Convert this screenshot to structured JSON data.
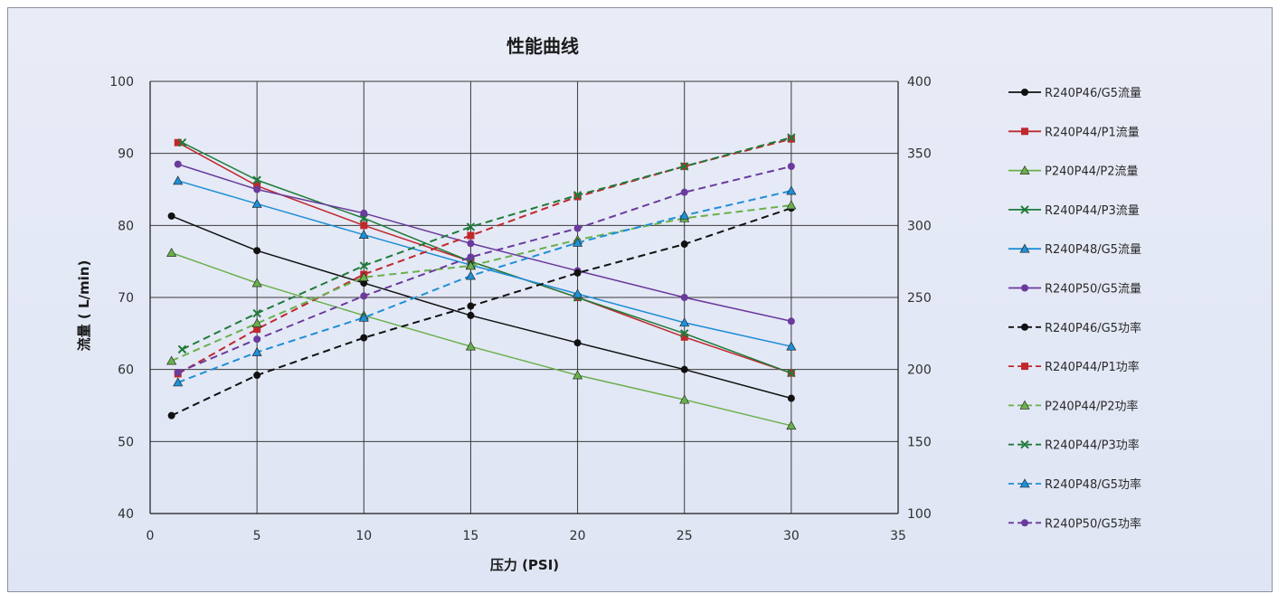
{
  "chart_data": {
    "type": "line",
    "title": "性能曲线",
    "xlabel": "压力 (PSI)",
    "ylabel": "流量 ( L/min)",
    "xlim": [
      0,
      35
    ],
    "ylim": [
      40,
      100
    ],
    "y2lim": [
      100,
      400
    ],
    "x_ticks": [
      0,
      5,
      10,
      15,
      20,
      25,
      30,
      35
    ],
    "y_ticks": [
      40,
      50,
      60,
      70,
      80,
      90,
      100
    ],
    "y2_ticks": [
      100,
      150,
      200,
      250,
      300,
      350,
      400
    ],
    "legend_position": "right",
    "grid": true,
    "series": [
      {
        "name": "R240P46/G5流量",
        "axis": "left",
        "style": "solid",
        "color": "#111111",
        "marker": "circle",
        "x": [
          1,
          5,
          10,
          15,
          20,
          25,
          30
        ],
        "y": [
          81.3,
          76.5,
          72,
          67.5,
          63.7,
          60,
          56
        ]
      },
      {
        "name": "R240P44/P1流量",
        "axis": "left",
        "style": "solid",
        "color": "#c0282d",
        "marker": "square",
        "x": [
          1.3,
          5,
          10,
          15,
          20,
          25,
          30
        ],
        "y": [
          91.5,
          85.5,
          80,
          75,
          70,
          64.5,
          59.5
        ]
      },
      {
        "name": "P240P44/P2流量",
        "axis": "left",
        "style": "solid",
        "color": "#6ab04c",
        "marker": "triangle",
        "x": [
          1,
          5,
          10,
          15,
          20,
          25,
          30
        ],
        "y": [
          76.2,
          72,
          67.5,
          63.2,
          59.2,
          55.8,
          52.2
        ]
      },
      {
        "name": "R240P44/P3流量",
        "axis": "left",
        "style": "solid",
        "color": "#1f7a3a",
        "marker": "x",
        "x": [
          1.5,
          5,
          10,
          15,
          20,
          25,
          30
        ],
        "y": [
          91.5,
          86.3,
          81,
          75,
          70,
          65,
          59.5
        ]
      },
      {
        "name": "R240P48/G5流量",
        "axis": "left",
        "style": "solid",
        "color": "#1f8fd6",
        "marker": "triangle",
        "x": [
          1.3,
          5,
          10,
          15,
          20,
          25,
          30
        ],
        "y": [
          86.2,
          83,
          78.7,
          74.5,
          70.5,
          66.5,
          63.2
        ]
      },
      {
        "name": "R240P50/G5流量",
        "axis": "left",
        "style": "solid",
        "color": "#6a3a9c",
        "marker": "circle",
        "x": [
          1.3,
          5,
          10,
          15,
          20,
          25,
          30
        ],
        "y": [
          88.5,
          85,
          81.7,
          77.5,
          73.7,
          70,
          66.7
        ]
      },
      {
        "name": "R240P46/G5功率",
        "axis": "right",
        "style": "dashed",
        "color": "#111111",
        "marker": "circle",
        "x": [
          1,
          5,
          10,
          15,
          20,
          25,
          30
        ],
        "y": [
          168,
          196,
          222,
          244,
          267,
          287,
          312
        ]
      },
      {
        "name": "R240P44/P1功率",
        "axis": "right",
        "style": "dashed",
        "color": "#c0282d",
        "marker": "square",
        "x": [
          1.3,
          5,
          10,
          15,
          20,
          25,
          30
        ],
        "y": [
          197,
          228,
          266,
          293,
          320,
          341,
          360
        ]
      },
      {
        "name": "P240P44/P2功率",
        "axis": "right",
        "style": "dashed",
        "color": "#6ab04c",
        "marker": "triangle",
        "x": [
          1,
          5,
          10,
          15,
          20,
          25,
          30
        ],
        "y": [
          206,
          232,
          264,
          272,
          290,
          305,
          314
        ]
      },
      {
        "name": "R240P44/P3功率",
        "axis": "right",
        "style": "dashed",
        "color": "#1f7a3a",
        "marker": "x",
        "x": [
          1.5,
          5,
          10,
          15,
          20,
          25,
          30
        ],
        "y": [
          214,
          239,
          272,
          299,
          321,
          341,
          361
        ]
      },
      {
        "name": "R240P48/G5功率",
        "axis": "right",
        "style": "dashed",
        "color": "#1f8fd6",
        "marker": "triangle",
        "x": [
          1.3,
          5,
          10,
          15,
          20,
          25,
          30
        ],
        "y": [
          191,
          212,
          236,
          265,
          288,
          307,
          324
        ]
      },
      {
        "name": "R240P50/G5功率",
        "axis": "right",
        "style": "dashed",
        "color": "#6a3a9c",
        "marker": "circle",
        "x": [
          1.3,
          5,
          10,
          15,
          20,
          25,
          30
        ],
        "y": [
          198,
          221,
          251,
          278,
          298,
          323,
          341
        ]
      }
    ]
  }
}
